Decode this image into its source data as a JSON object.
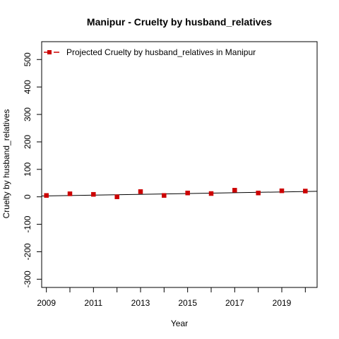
{
  "chart_data": {
    "type": "scatter",
    "title": "Manipur  -  Cruelty by husband_relatives",
    "xlabel": "Year",
    "ylabel": "Cruelty by husband_relatives",
    "xlim": [
      2008.8,
      2020.5
    ],
    "ylim": [
      -330,
      565
    ],
    "x_ticks": [
      2009,
      2010,
      2011,
      2012,
      2013,
      2014,
      2015,
      2016,
      2017,
      2018,
      2019,
      2020
    ],
    "x_tick_labels": [
      "2009",
      "",
      "2011",
      "",
      "2013",
      "",
      "2015",
      "",
      "2017",
      "",
      "2019",
      ""
    ],
    "y_ticks": [
      -300,
      -200,
      -100,
      0,
      100,
      200,
      300,
      400,
      500
    ],
    "y_tick_labels": [
      "-300",
      "-200",
      "-100",
      "0",
      "100",
      "200",
      "300",
      "400",
      "500"
    ],
    "legend": {
      "position": "top-left",
      "label": "Projected  Cruelty by husband_relatives  in  Manipur"
    },
    "series": [
      {
        "name": "Projected  Cruelty by husband_relatives  in  Manipur",
        "marker": "square",
        "color": "#cc0000",
        "x": [
          2009,
          2010,
          2011,
          2012,
          2013,
          2014,
          2015,
          2016,
          2017,
          2018,
          2019,
          2020
        ],
        "y": [
          5,
          11,
          9,
          0,
          19,
          5,
          14,
          12,
          24,
          14,
          22,
          21
        ]
      }
    ],
    "trend_line": {
      "color": "#000000",
      "x": [
        2008.8,
        2020.5
      ],
      "y": [
        3,
        20
      ]
    },
    "grid": false
  }
}
